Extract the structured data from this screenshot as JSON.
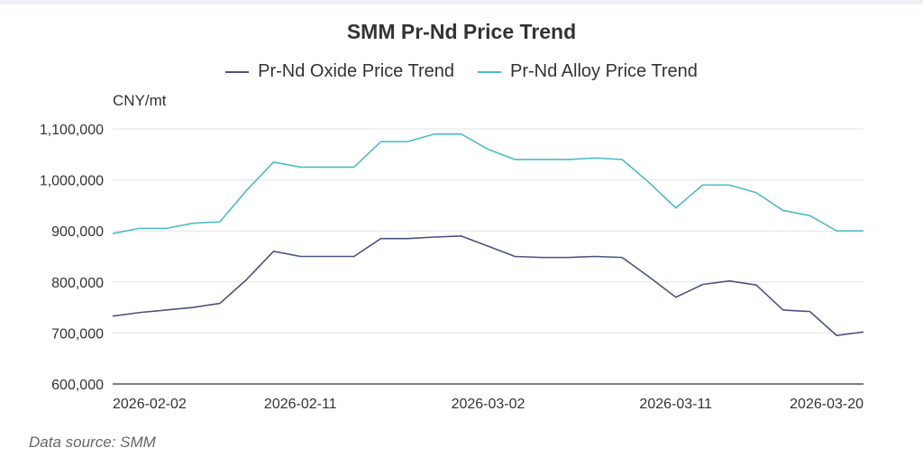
{
  "chart_data": {
    "type": "line",
    "title": "SMM Pr-Nd Price Trend",
    "ylabel": "CNY/mt",
    "xlabel": "",
    "ylim": [
      600000,
      1100000
    ],
    "yticks": [
      600000,
      700000,
      800000,
      900000,
      1000000,
      1100000
    ],
    "ytick_labels": [
      "600,000",
      "700,000",
      "800,000",
      "900,000",
      "1,000,000",
      "1,100,000"
    ],
    "grid": true,
    "legend_position": "top-center",
    "x": [
      "2026-02-02",
      "2026-02-03",
      "2026-02-04",
      "2026-02-05",
      "2026-02-06",
      "2026-02-09",
      "2026-02-10",
      "2026-02-11",
      "2026-02-12",
      "2026-02-13",
      "2026-02-24",
      "2026-02-25",
      "2026-02-26",
      "2026-02-27",
      "2026-03-02",
      "2026-03-03",
      "2026-03-04",
      "2026-03-05",
      "2026-03-06",
      "2026-03-09",
      "2026-03-10",
      "2026-03-11",
      "2026-03-12",
      "2026-03-13",
      "2026-03-16",
      "2026-03-17",
      "2026-03-18",
      "2026-03-19",
      "2026-03-20"
    ],
    "xtick_labels": [
      "2026-02-02",
      "2026-02-11",
      "2026-03-02",
      "2026-03-11",
      "2026-03-20"
    ],
    "series": [
      {
        "name": "Pr-Nd Oxide Price Trend",
        "color": "#4a5382",
        "values": [
          733000,
          740000,
          745000,
          750000,
          758000,
          805000,
          860000,
          850000,
          850000,
          850000,
          885000,
          885000,
          888000,
          890000,
          870000,
          850000,
          848000,
          848000,
          850000,
          848000,
          810000,
          770000,
          795000,
          802000,
          794000,
          745000,
          742000,
          695000,
          702000
        ]
      },
      {
        "name": "Pr-Nd Alloy Price Trend",
        "color": "#4cbcc4",
        "values": [
          895000,
          905000,
          905000,
          915000,
          918000,
          980000,
          1035000,
          1025000,
          1025000,
          1025000,
          1075000,
          1075000,
          1090000,
          1090000,
          1060000,
          1040000,
          1040000,
          1040000,
          1043000,
          1040000,
          995000,
          945000,
          990000,
          990000,
          975000,
          940000,
          930000,
          900000,
          900000
        ]
      }
    ]
  },
  "footer": {
    "source": "Data source:  SMM"
  }
}
